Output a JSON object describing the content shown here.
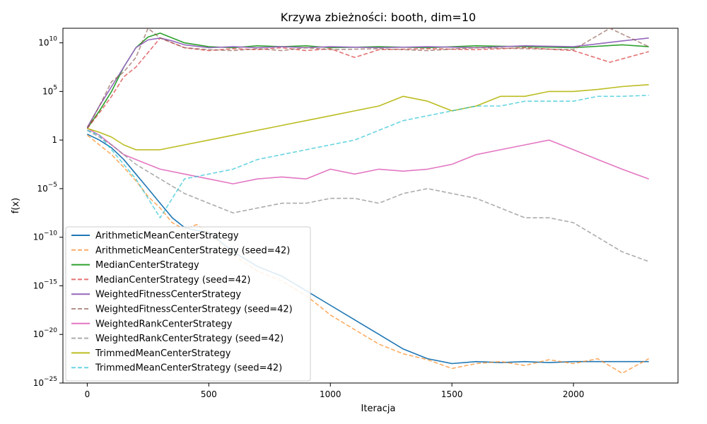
{
  "chart_data": {
    "type": "line",
    "title": "Krzywa zbieżności: booth, dim=10",
    "xlabel": "Iteracja",
    "ylabel": "f(x)",
    "xlim": [
      -100,
      2430
    ],
    "ylim_log10": [
      -25,
      11.5
    ],
    "yscale": "log",
    "grid": false,
    "legend_position": "lower-left",
    "x_ticks": [
      0,
      500,
      1000,
      1500,
      2000
    ],
    "y_ticks": [
      {
        "exp": 10,
        "label": "10^10"
      },
      {
        "exp": 5,
        "label": "10^5"
      },
      {
        "exp": 0,
        "label": "1"
      },
      {
        "exp": -5,
        "label": "10^-5"
      },
      {
        "exp": -10,
        "label": "10^-10"
      },
      {
        "exp": -15,
        "label": "10^-15"
      },
      {
        "exp": -20,
        "label": "10^-20"
      },
      {
        "exp": -25,
        "label": "10^-25"
      }
    ],
    "series": [
      {
        "name": "ArithmeticMeanCenterStrategy",
        "color": "#1f77b4",
        "dash": false,
        "x": [
          0,
          50,
          100,
          150,
          200,
          250,
          300,
          350,
          400,
          450,
          500,
          600,
          700,
          800,
          900,
          1000,
          1100,
          1200,
          1300,
          1400,
          1500,
          1600,
          1700,
          1800,
          1900,
          2000,
          2100,
          2200,
          2310
        ],
        "log10_y": [
          0.6,
          0,
          -0.8,
          -2,
          -3.5,
          -5,
          -6.5,
          -8,
          -9,
          -9.3,
          -9.5,
          -11.5,
          -13,
          -14,
          -15.5,
          -17,
          -18.5,
          -20,
          -21.5,
          -22.5,
          -23,
          -22.8,
          -22.9,
          -22.8,
          -22.9,
          -22.8,
          -22.8,
          -22.8,
          -22.8
        ]
      },
      {
        "name": "ArithmeticMeanCenterStrategy (seed=42)",
        "color": "#ff7f0e",
        "dash": true,
        "x": [
          0,
          50,
          100,
          150,
          200,
          250,
          300,
          350,
          400,
          450,
          500,
          600,
          700,
          800,
          900,
          1000,
          1100,
          1200,
          1300,
          1400,
          1500,
          1600,
          1700,
          1800,
          1900,
          2000,
          2100,
          2200,
          2310
        ],
        "log10_y": [
          0.5,
          -0.5,
          -1.5,
          -2.8,
          -4.2,
          -5.8,
          -7,
          -8.5,
          -9.2,
          -8.7,
          -9.6,
          -11.8,
          -13.5,
          -14.5,
          -16,
          -18,
          -19.5,
          -21,
          -22,
          -22.6,
          -23.5,
          -23,
          -22.8,
          -23.2,
          -22.6,
          -23,
          -22.5,
          -24,
          -22.5
        ]
      },
      {
        "name": "MedianCenterStrategy",
        "color": "#2ca02c",
        "dash": false,
        "x": [
          0,
          50,
          100,
          150,
          200,
          250,
          300,
          350,
          400,
          500,
          600,
          700,
          800,
          900,
          1000,
          1200,
          1400,
          1600,
          1800,
          2000,
          2200,
          2310
        ],
        "log10_y": [
          1.2,
          3,
          5,
          7.5,
          9.5,
          10.6,
          11,
          10.5,
          10,
          9.6,
          9.5,
          9.7,
          9.6,
          9.7,
          9.5,
          9.6,
          9.5,
          9.7,
          9.6,
          9.5,
          9.8,
          9.6
        ]
      },
      {
        "name": "MedianCenterStrategy (seed=42)",
        "color": "#d62728",
        "dash": true,
        "x": [
          0,
          50,
          100,
          150,
          200,
          250,
          300,
          350,
          400,
          500,
          600,
          700,
          800,
          900,
          1000,
          1100,
          1200,
          1400,
          1600,
          1800,
          2000,
          2150,
          2310
        ],
        "log10_y": [
          1.2,
          2.8,
          4.5,
          6.5,
          7.5,
          9,
          10.5,
          10,
          9.5,
          9.2,
          9.4,
          9.3,
          9.5,
          9.2,
          9.4,
          8.5,
          9.3,
          9.4,
          9.3,
          9.5,
          9.2,
          8,
          9.1
        ]
      },
      {
        "name": "WeightedFitnessCenterStrategy",
        "color": "#9467bd",
        "dash": false,
        "x": [
          0,
          50,
          100,
          150,
          200,
          250,
          300,
          350,
          400,
          500,
          600,
          700,
          800,
          900,
          1000,
          1200,
          1400,
          1600,
          1800,
          2000,
          2200,
          2310
        ],
        "log10_y": [
          1.3,
          3.5,
          5.5,
          7.5,
          9.5,
          10.3,
          10.5,
          10.2,
          9.8,
          9.5,
          9.6,
          9.5,
          9.6,
          9.5,
          9.6,
          9.5,
          9.6,
          9.5,
          9.7,
          9.6,
          10.2,
          10.5
        ]
      },
      {
        "name": "WeightedFitnessCenterStrategy (seed=42)",
        "color": "#8c564b",
        "dash": true,
        "x": [
          0,
          50,
          100,
          150,
          200,
          250,
          300,
          350,
          400,
          500,
          600,
          700,
          800,
          900,
          1000,
          1200,
          1400,
          1600,
          1800,
          2000,
          2150,
          2310
        ],
        "log10_y": [
          1.2,
          3.5,
          6,
          7,
          8.5,
          11.5,
          10.5,
          10,
          9.5,
          9.3,
          9.2,
          9.4,
          9.2,
          9.5,
          9.3,
          9.4,
          9.2,
          9.5,
          9.4,
          9.3,
          11.5,
          9.6
        ]
      },
      {
        "name": "WeightedRankCenterStrategy",
        "color": "#e377c2",
        "dash": false,
        "x": [
          0,
          50,
          100,
          150,
          200,
          300,
          400,
          500,
          600,
          700,
          800,
          900,
          1000,
          1100,
          1200,
          1300,
          1400,
          1500,
          1600,
          1700,
          1800,
          1900,
          2000,
          2100,
          2200,
          2310
        ],
        "log10_y": [
          1.2,
          0.5,
          -0.5,
          -1.5,
          -2,
          -3,
          -3.5,
          -4,
          -4.5,
          -4,
          -3.8,
          -4,
          -3,
          -3.5,
          -3,
          -3.2,
          -3,
          -2.5,
          -1.5,
          -1,
          -0.5,
          0,
          -1,
          -2,
          -3,
          -4
        ]
      },
      {
        "name": "WeightedRankCenterStrategy (seed=42)",
        "color": "#7f7f7f",
        "dash": true,
        "x": [
          0,
          50,
          100,
          150,
          200,
          300,
          400,
          500,
          600,
          700,
          800,
          900,
          1000,
          1100,
          1200,
          1300,
          1400,
          1500,
          1600,
          1700,
          1800,
          1900,
          2000,
          2100,
          2200,
          2310
        ],
        "log10_y": [
          1,
          0.3,
          -0.5,
          -1.5,
          -2.5,
          -4,
          -5.5,
          -6.5,
          -7.5,
          -7,
          -6.5,
          -6.5,
          -6,
          -6,
          -6.5,
          -5.5,
          -5,
          -5.5,
          -6,
          -7,
          -8,
          -8,
          -8.5,
          -10,
          -11.5,
          -12.5
        ]
      },
      {
        "name": "TrimmedMeanCenterStrategy",
        "color": "#bcbd22",
        "dash": false,
        "x": [
          0,
          50,
          100,
          150,
          200,
          300,
          400,
          500,
          600,
          700,
          800,
          900,
          1000,
          1100,
          1200,
          1300,
          1400,
          1500,
          1600,
          1700,
          1800,
          1900,
          2000,
          2100,
          2200,
          2310
        ],
        "log10_y": [
          1.2,
          0.8,
          0.3,
          -0.5,
          -1,
          -1,
          -0.5,
          0,
          0.5,
          1,
          1.5,
          2,
          2.5,
          3,
          3.5,
          4.5,
          4,
          3,
          3.5,
          4.5,
          4.5,
          5,
          5,
          5.2,
          5.5,
          5.7
        ]
      },
      {
        "name": "TrimmedMeanCenterStrategy (seed=42)",
        "color": "#17becf",
        "dash": true,
        "x": [
          0,
          50,
          100,
          150,
          200,
          250,
          300,
          400,
          500,
          600,
          700,
          800,
          900,
          1000,
          1100,
          1200,
          1300,
          1400,
          1500,
          1600,
          1700,
          1800,
          1900,
          2000,
          2100,
          2200,
          2310
        ],
        "log10_y": [
          1,
          0.5,
          -1,
          -2.5,
          -4,
          -6,
          -8,
          -4,
          -3.5,
          -3,
          -2,
          -1.5,
          -1,
          -0.5,
          0,
          1,
          2,
          2.5,
          3,
          3.5,
          3.5,
          4,
          4,
          4,
          4.5,
          4.5,
          4.6
        ]
      }
    ]
  }
}
